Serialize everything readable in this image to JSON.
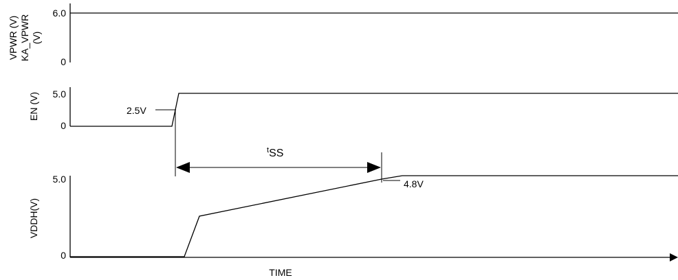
{
  "diagram": {
    "type": "timing-diagram",
    "x_axis_label": "TIME",
    "panels": [
      {
        "id": "vpwr",
        "y_label_lines": [
          "VPWR (V)",
          "KA_VPWR",
          "(V)"
        ],
        "tick_high": "6.0",
        "tick_low": "0"
      },
      {
        "id": "en",
        "y_label_lines": [
          "EN (V)"
        ],
        "tick_high": "5.0",
        "tick_low": "0",
        "threshold_label": "2.5V"
      },
      {
        "id": "vddh",
        "y_label_lines": [
          "VDDH(V)"
        ],
        "tick_high": "5.0",
        "tick_low": "0",
        "threshold_label": "4.8V"
      }
    ],
    "interval": {
      "symbol": "t",
      "subscript": "SS"
    }
  },
  "colors": {
    "line": "#000000",
    "background": "#ffffff"
  }
}
